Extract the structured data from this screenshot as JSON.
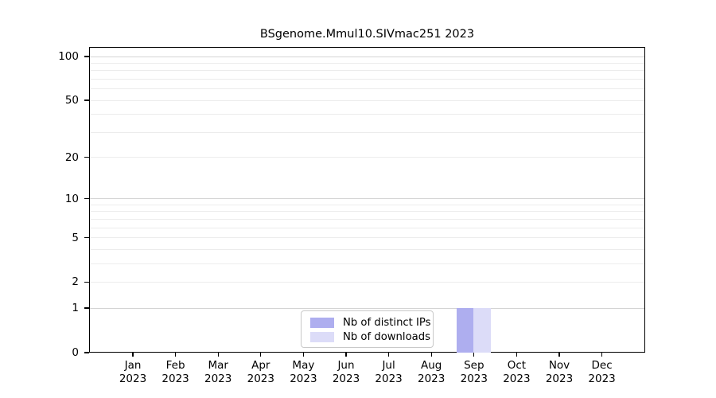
{
  "chart_data": {
    "type": "bar",
    "title": "BSgenome.Mmul10.SIVmac251 2023",
    "categories": [
      "Jan",
      "Feb",
      "Mar",
      "Apr",
      "May",
      "Jun",
      "Jul",
      "Aug",
      "Sep",
      "Oct",
      "Nov",
      "Dec"
    ],
    "category_year": "2023",
    "series": [
      {
        "name": "Nb of distinct IPs",
        "color": "#aeaeef",
        "values": [
          0,
          0,
          0,
          0,
          0,
          0,
          0,
          0,
          1,
          0,
          0,
          0
        ]
      },
      {
        "name": "Nb of downloads",
        "color": "#dcdcf8",
        "values": [
          0,
          0,
          0,
          0,
          0,
          0,
          0,
          0,
          1,
          0,
          0,
          0
        ]
      }
    ],
    "xlabel": "",
    "ylabel": "",
    "y_axis": {
      "scale": "log1p",
      "tick_values": [
        0,
        1,
        2,
        5,
        10,
        20,
        50,
        100
      ],
      "min": 0,
      "max": 110
    },
    "gridlines": {
      "minor_values": [
        2,
        3,
        4,
        5,
        6,
        7,
        8,
        9,
        20,
        30,
        40,
        50,
        60,
        70,
        80,
        90
      ],
      "major_values": [
        1,
        10,
        100
      ],
      "minor_color": "#ececec",
      "major_color": "#d4d4d4"
    },
    "legend": {
      "position": "bottom-center",
      "entries": [
        "Nb of distinct IPs",
        "Nb of downloads"
      ]
    },
    "grid": true,
    "axis_color": "#000000",
    "background_color": "#ffffff"
  }
}
